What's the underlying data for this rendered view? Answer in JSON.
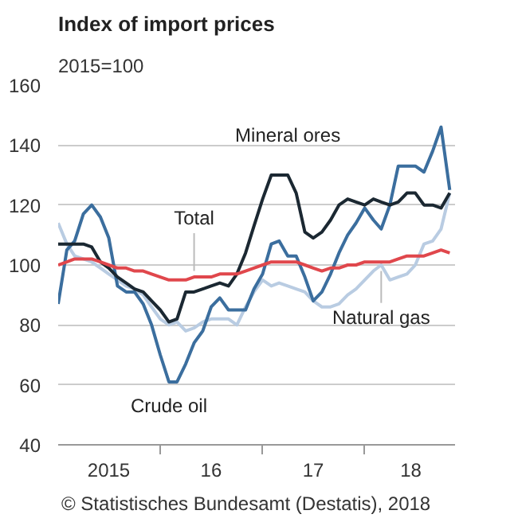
{
  "chart_data": {
    "type": "line",
    "title": "Index of import prices",
    "subtitle": "2015=100",
    "x": [
      "2015-01",
      "2015-02",
      "2015-03",
      "2015-04",
      "2015-05",
      "2015-06",
      "2015-07",
      "2015-08",
      "2015-09",
      "2015-10",
      "2015-11",
      "2015-12",
      "2016-01",
      "2016-02",
      "2016-03",
      "2016-04",
      "2016-05",
      "2016-06",
      "2016-07",
      "2016-08",
      "2016-09",
      "2016-10",
      "2016-11",
      "2016-12",
      "2017-01",
      "2017-02",
      "2017-03",
      "2017-04",
      "2017-05",
      "2017-06",
      "2017-07",
      "2017-08",
      "2017-09",
      "2017-10",
      "2017-11",
      "2017-12",
      "2018-01",
      "2018-02",
      "2018-03",
      "2018-04",
      "2018-05",
      "2018-06",
      "2018-07",
      "2018-08",
      "2018-09",
      "2018-10",
      "2018-11"
    ],
    "series": [
      {
        "name": "Natural gas",
        "color": "#b9cce2",
        "values": [
          114,
          107,
          103,
          102,
          101,
          99,
          97,
          95,
          93,
          92,
          90,
          86,
          82,
          80,
          81,
          78,
          79,
          81,
          82,
          82,
          82,
          80,
          86,
          91,
          95,
          93,
          94,
          93,
          92,
          91,
          88,
          86,
          86,
          87,
          90,
          92,
          95,
          98,
          100,
          95,
          96,
          97,
          100,
          107,
          108,
          112,
          124
        ]
      },
      {
        "name": "Crude oil",
        "color": "#3b6e9e",
        "values": [
          87,
          105,
          108,
          117,
          120,
          116,
          109,
          93,
          91,
          91,
          87,
          80,
          70,
          61,
          61,
          67,
          74,
          78,
          86,
          89,
          85,
          85,
          85,
          92,
          97,
          107,
          108,
          103,
          103,
          96,
          88,
          91,
          97,
          104,
          110,
          114,
          119,
          115,
          112,
          120,
          133,
          133,
          133,
          131,
          138,
          146,
          125
        ]
      },
      {
        "name": "Mineral ores",
        "color": "#1b2832",
        "values": [
          107,
          107,
          107,
          107,
          106,
          101,
          99,
          96,
          94,
          92,
          91,
          88,
          85,
          81,
          82,
          91,
          91,
          92,
          93,
          94,
          93,
          97,
          104,
          113,
          122,
          130,
          130,
          130,
          124,
          111,
          109,
          111,
          115,
          120,
          122,
          121,
          120,
          122,
          121,
          120,
          121,
          124,
          124,
          120,
          120,
          119,
          124
        ]
      },
      {
        "name": "Total",
        "color": "#e0474c",
        "values": [
          100,
          101,
          102,
          102,
          102,
          101,
          100,
          99,
          99,
          98,
          98,
          97,
          96,
          95,
          95,
          95,
          96,
          96,
          96,
          97,
          97,
          97,
          98,
          99,
          100,
          101,
          101,
          101,
          101,
          100,
          99,
          98,
          99,
          99,
          100,
          100,
          101,
          101,
          101,
          101,
          102,
          103,
          103,
          103,
          104,
          105,
          104
        ]
      }
    ],
    "xlim": [
      "2015-01",
      "2018-11-20"
    ],
    "xticks": [
      {
        "value": "2015-07",
        "label": "2015"
      },
      {
        "value": "2016-01",
        "label": null
      },
      {
        "value": "2016-07",
        "label": "16"
      },
      {
        "value": "2017-01",
        "label": null
      },
      {
        "value": "2017-07",
        "label": "17"
      },
      {
        "value": "2018-01",
        "label": null
      },
      {
        "value": "2018-06-15",
        "label": "18"
      }
    ],
    "ylim": [
      40,
      160
    ],
    "yticks": [
      40,
      60,
      80,
      100,
      120,
      140,
      160
    ],
    "grid": "y",
    "marker": "none",
    "line_style": "solid",
    "annotations": [
      "© Statistisches Bundesamt (Destatis), 2018"
    ]
  }
}
